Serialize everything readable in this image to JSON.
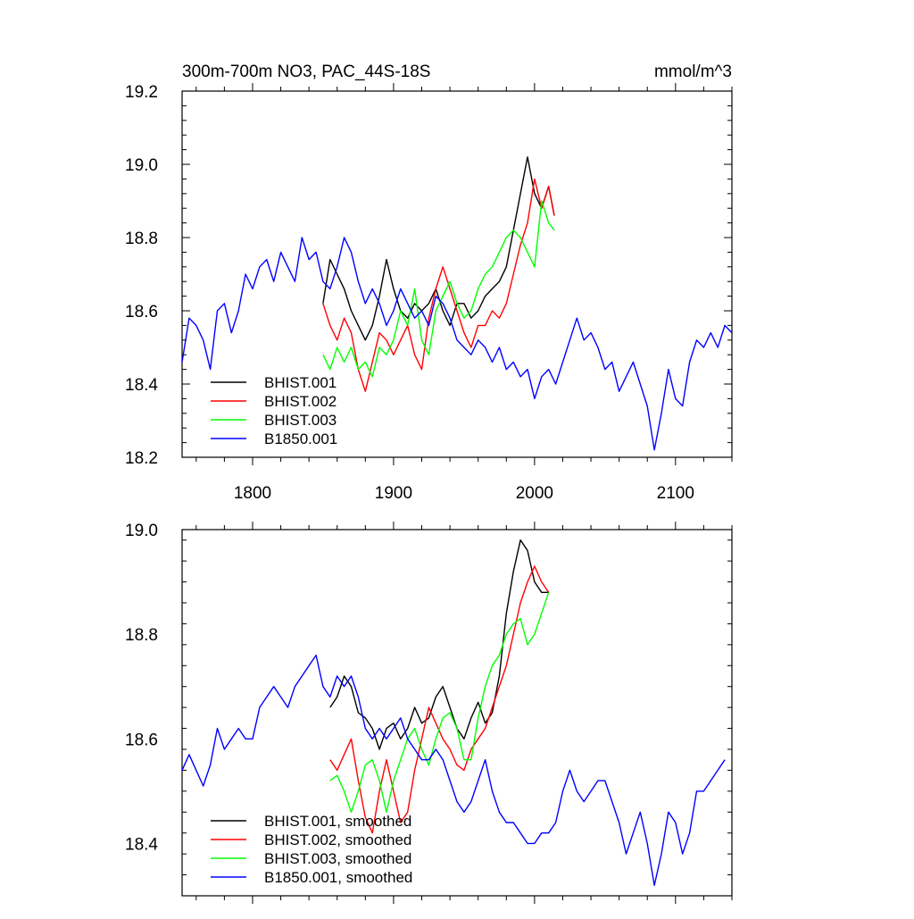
{
  "chart_data": [
    {
      "type": "line",
      "title": "300m-700m NO3, PAC_44S-18S",
      "units": "mmol/m^3",
      "xlim": [
        1750,
        2140
      ],
      "ylim": [
        18.2,
        19.2
      ],
      "x_ticks": [
        1800,
        1900,
        2000,
        2100
      ],
      "x_tick_labels": [
        "1800",
        "1900",
        "2000",
        "2100"
      ],
      "y_ticks": [
        18.2,
        18.4,
        18.6,
        18.8,
        19.0,
        19.2
      ],
      "y_tick_labels": [
        "18.2",
        "18.4",
        "18.6",
        "18.8",
        "19.0",
        "19.2"
      ],
      "legend_position": "bottom-left",
      "series": [
        {
          "name": "BHIST.001",
          "color": "#000000",
          "x": [
            1850,
            1855,
            1860,
            1865,
            1870,
            1875,
            1880,
            1885,
            1890,
            1895,
            1900,
            1905,
            1910,
            1915,
            1920,
            1925,
            1930,
            1935,
            1940,
            1945,
            1950,
            1955,
            1960,
            1965,
            1970,
            1975,
            1980,
            1985,
            1990,
            1995,
            2000,
            2005,
            2010,
            2014
          ],
          "y": [
            18.62,
            18.74,
            18.7,
            18.66,
            18.6,
            18.56,
            18.52,
            18.56,
            18.64,
            18.74,
            18.66,
            18.6,
            18.58,
            18.62,
            18.6,
            18.62,
            18.66,
            18.6,
            18.56,
            18.62,
            18.62,
            18.58,
            18.6,
            18.64,
            18.66,
            18.68,
            18.72,
            18.82,
            18.92,
            19.02,
            18.92,
            18.88,
            18.94,
            18.86
          ]
        },
        {
          "name": "BHIST.002",
          "color": "#ff0000",
          "x": [
            1850,
            1855,
            1860,
            1865,
            1870,
            1875,
            1880,
            1885,
            1890,
            1895,
            1900,
            1905,
            1910,
            1915,
            1920,
            1925,
            1930,
            1935,
            1940,
            1945,
            1950,
            1955,
            1960,
            1965,
            1970,
            1975,
            1980,
            1985,
            1990,
            1995,
            2000,
            2005,
            2010,
            2014
          ],
          "y": [
            18.62,
            18.56,
            18.52,
            18.58,
            18.54,
            18.44,
            18.38,
            18.46,
            18.54,
            18.52,
            18.48,
            18.52,
            18.56,
            18.48,
            18.44,
            18.58,
            18.66,
            18.72,
            18.66,
            18.6,
            18.54,
            18.5,
            18.56,
            18.56,
            18.6,
            18.58,
            18.62,
            18.7,
            18.78,
            18.84,
            18.96,
            18.88,
            18.94,
            18.86
          ]
        },
        {
          "name": "BHIST.003",
          "color": "#00ff00",
          "x": [
            1850,
            1855,
            1860,
            1865,
            1870,
            1875,
            1880,
            1885,
            1890,
            1895,
            1900,
            1905,
            1910,
            1915,
            1920,
            1925,
            1930,
            1935,
            1940,
            1945,
            1950,
            1955,
            1960,
            1965,
            1970,
            1975,
            1980,
            1985,
            1990,
            1995,
            2000,
            2005,
            2010,
            2014
          ],
          "y": [
            18.48,
            18.44,
            18.5,
            18.46,
            18.5,
            18.44,
            18.46,
            18.42,
            18.5,
            18.48,
            18.52,
            18.6,
            18.56,
            18.66,
            18.52,
            18.48,
            18.6,
            18.64,
            18.68,
            18.62,
            18.58,
            18.6,
            18.66,
            18.7,
            18.72,
            18.76,
            18.8,
            18.82,
            18.8,
            18.76,
            18.72,
            18.9,
            18.84,
            18.82
          ]
        },
        {
          "name": "B1850.001",
          "color": "#0000ff",
          "x": [
            1750,
            1755,
            1760,
            1765,
            1770,
            1775,
            1780,
            1785,
            1790,
            1795,
            1800,
            1805,
            1810,
            1815,
            1820,
            1825,
            1830,
            1835,
            1840,
            1845,
            1850,
            1855,
            1860,
            1865,
            1870,
            1875,
            1880,
            1885,
            1890,
            1895,
            1900,
            1905,
            1910,
            1915,
            1920,
            1925,
            1930,
            1935,
            1940,
            1945,
            1950,
            1955,
            1960,
            1965,
            1970,
            1975,
            1980,
            1985,
            1990,
            1995,
            2000,
            2005,
            2010,
            2015,
            2020,
            2025,
            2030,
            2035,
            2040,
            2045,
            2050,
            2055,
            2060,
            2065,
            2070,
            2075,
            2080,
            2085,
            2090,
            2095,
            2100,
            2105,
            2110,
            2115,
            2120,
            2125,
            2130,
            2135,
            2140
          ],
          "y": [
            18.46,
            18.58,
            18.56,
            18.52,
            18.44,
            18.6,
            18.62,
            18.54,
            18.6,
            18.7,
            18.66,
            18.72,
            18.74,
            18.68,
            18.76,
            18.72,
            18.68,
            18.8,
            18.74,
            18.76,
            18.68,
            18.66,
            18.72,
            18.8,
            18.76,
            18.68,
            18.62,
            18.66,
            18.62,
            18.56,
            18.6,
            18.66,
            18.62,
            18.58,
            18.6,
            18.56,
            18.64,
            18.62,
            18.58,
            18.52,
            18.5,
            18.48,
            18.52,
            18.5,
            18.46,
            18.5,
            18.44,
            18.46,
            18.42,
            18.44,
            18.36,
            18.42,
            18.44,
            18.4,
            18.46,
            18.52,
            18.58,
            18.52,
            18.54,
            18.5,
            18.44,
            18.46,
            18.38,
            18.42,
            18.46,
            18.4,
            18.34,
            18.22,
            18.32,
            18.44,
            18.36,
            18.34,
            18.46,
            18.52,
            18.5,
            18.54,
            18.5,
            18.56,
            18.54
          ]
        }
      ],
      "legend": [
        "BHIST.001",
        "BHIST.002",
        "BHIST.003",
        "B1850.001"
      ]
    },
    {
      "type": "line",
      "xlim": [
        1750,
        2140
      ],
      "ylim": [
        18.3,
        19.0
      ],
      "x_ticks": [
        1800,
        1900,
        2000,
        2100
      ],
      "y_ticks": [
        18.4,
        18.6,
        18.8,
        19.0
      ],
      "y_tick_labels": [
        "18.4",
        "18.6",
        "18.8",
        "19.0"
      ],
      "legend_position": "bottom-left",
      "series": [
        {
          "name": "BHIST.001, smoothed",
          "color": "#000000",
          "x": [
            1855,
            1860,
            1865,
            1870,
            1875,
            1880,
            1885,
            1890,
            1895,
            1900,
            1905,
            1910,
            1915,
            1920,
            1925,
            1930,
            1935,
            1940,
            1945,
            1950,
            1955,
            1960,
            1965,
            1970,
            1975,
            1980,
            1985,
            1990,
            1995,
            2000,
            2005,
            2010
          ],
          "y": [
            18.66,
            18.68,
            18.72,
            18.7,
            18.65,
            18.64,
            18.62,
            18.58,
            18.62,
            18.63,
            18.6,
            18.62,
            18.66,
            18.63,
            18.64,
            18.68,
            18.7,
            18.66,
            18.62,
            18.6,
            18.64,
            18.67,
            18.63,
            18.65,
            18.72,
            18.84,
            18.92,
            18.98,
            18.96,
            18.9,
            18.88,
            18.88
          ]
        },
        {
          "name": "BHIST.002, smoothed",
          "color": "#ff0000",
          "x": [
            1855,
            1860,
            1865,
            1870,
            1875,
            1880,
            1885,
            1890,
            1895,
            1900,
            1905,
            1910,
            1915,
            1920,
            1925,
            1930,
            1935,
            1940,
            1945,
            1950,
            1955,
            1960,
            1965,
            1970,
            1975,
            1980,
            1985,
            1990,
            1995,
            2000,
            2005,
            2010
          ],
          "y": [
            18.56,
            18.54,
            18.57,
            18.6,
            18.52,
            18.45,
            18.42,
            18.5,
            18.56,
            18.5,
            18.44,
            18.46,
            18.54,
            18.6,
            18.66,
            18.63,
            18.6,
            18.58,
            18.55,
            18.54,
            18.58,
            18.6,
            18.62,
            18.66,
            18.7,
            18.74,
            18.8,
            18.86,
            18.9,
            18.93,
            18.9,
            18.88
          ]
        },
        {
          "name": "BHIST.003, smoothed",
          "color": "#00ff00",
          "x": [
            1855,
            1860,
            1865,
            1870,
            1875,
            1880,
            1885,
            1890,
            1895,
            1900,
            1905,
            1910,
            1915,
            1920,
            1925,
            1930,
            1935,
            1940,
            1945,
            1950,
            1955,
            1960,
            1965,
            1970,
            1975,
            1980,
            1985,
            1990,
            1995,
            2000,
            2005,
            2010
          ],
          "y": [
            18.52,
            18.53,
            18.5,
            18.46,
            18.5,
            18.55,
            18.56,
            18.52,
            18.46,
            18.52,
            18.56,
            18.6,
            18.62,
            18.58,
            18.55,
            18.6,
            18.64,
            18.65,
            18.62,
            18.56,
            18.56,
            18.64,
            18.7,
            18.74,
            18.76,
            18.8,
            18.82,
            18.83,
            18.78,
            18.8,
            18.84,
            18.88
          ]
        },
        {
          "name": "B1850.001, smoothed",
          "color": "#0000ff",
          "x": [
            1750,
            1755,
            1760,
            1765,
            1770,
            1775,
            1780,
            1785,
            1790,
            1795,
            1800,
            1805,
            1810,
            1815,
            1820,
            1825,
            1830,
            1835,
            1840,
            1845,
            1850,
            1855,
            1860,
            1865,
            1870,
            1875,
            1880,
            1885,
            1890,
            1895,
            1900,
            1905,
            1910,
            1915,
            1920,
            1925,
            1930,
            1935,
            1940,
            1945,
            1950,
            1955,
            1960,
            1965,
            1970,
            1975,
            1980,
            1985,
            1990,
            1995,
            2000,
            2005,
            2010,
            2015,
            2020,
            2025,
            2030,
            2035,
            2040,
            2045,
            2050,
            2055,
            2060,
            2065,
            2070,
            2075,
            2080,
            2085,
            2090,
            2095,
            2100,
            2105,
            2110,
            2115,
            2120,
            2125,
            2130,
            2135
          ],
          "y": [
            18.54,
            18.57,
            18.54,
            18.51,
            18.55,
            18.62,
            18.58,
            18.6,
            18.62,
            18.6,
            18.6,
            18.66,
            18.68,
            18.7,
            18.68,
            18.66,
            18.7,
            18.72,
            18.74,
            18.76,
            18.7,
            18.68,
            18.72,
            18.7,
            18.72,
            18.68,
            18.62,
            18.6,
            18.62,
            18.6,
            18.62,
            18.64,
            18.6,
            18.58,
            18.56,
            18.56,
            18.58,
            18.56,
            18.52,
            18.48,
            18.46,
            18.48,
            18.52,
            18.56,
            18.5,
            18.46,
            18.44,
            18.44,
            18.42,
            18.4,
            18.4,
            18.42,
            18.42,
            18.44,
            18.5,
            18.54,
            18.5,
            18.48,
            18.5,
            18.52,
            18.52,
            18.48,
            18.44,
            18.38,
            18.42,
            18.46,
            18.4,
            18.32,
            18.38,
            18.46,
            18.44,
            18.38,
            18.42,
            18.5,
            18.5,
            18.52,
            18.54,
            18.56
          ]
        }
      ],
      "legend": [
        "BHIST.001, smoothed",
        "BHIST.002, smoothed",
        "BHIST.003, smoothed",
        "B1850.001, smoothed"
      ]
    }
  ]
}
